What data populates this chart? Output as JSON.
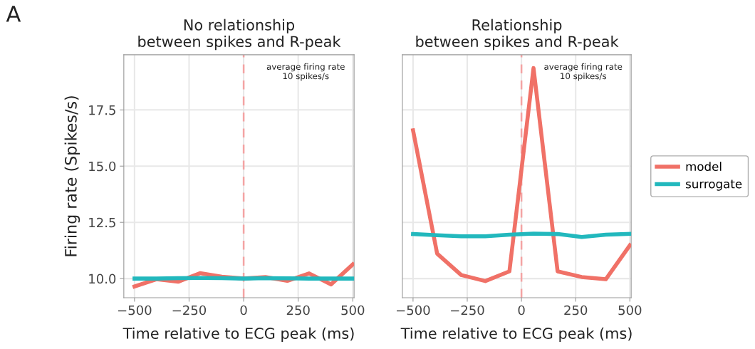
{
  "chart_data": [
    {
      "type": "line",
      "title": "No relationship\nbetween spikes and R-peak",
      "xlabel": "Time relative to ECG peak (ms)",
      "ylabel": "Firing rate (Spikes/s)",
      "annotations": [
        "A",
        "average firing rate\n10 spikes/s"
      ],
      "x": [
        -500,
        -400,
        -300,
        -200,
        -100,
        0,
        100,
        200,
        300,
        400,
        500
      ],
      "series": [
        {
          "color": "#f07167",
          "values": [
            9.65,
            9.97,
            9.86,
            10.24,
            10.08,
            10.0,
            10.07,
            9.9,
            10.23,
            9.74,
            10.63
          ]
        },
        {
          "color": "#22b8bd",
          "values": [
            10.0,
            10.0,
            10.02,
            10.03,
            10.02,
            10.0,
            10.02,
            10.01,
            10.0,
            10.0,
            10.0
          ]
        }
      ],
      "xlim": [
        -549,
        506
      ],
      "ylim": [
        9.15,
        19.95
      ],
      "xticks": [
        -500,
        -250,
        0,
        250,
        500
      ],
      "yticks": [
        {
          "value": 10,
          "label": "10.0"
        },
        {
          "value": 12.5,
          "label": "12.5"
        },
        {
          "value": 15,
          "label": "15.0"
        },
        {
          "value": 17.5,
          "label": "17.5"
        }
      ],
      "ref_lines": [
        {
          "axis": "x",
          "value": 0,
          "color": "#f4a3a3",
          "line_style": "dashed"
        }
      ],
      "grid": true,
      "legend": false,
      "marker": "none",
      "line_style": "solid"
    },
    {
      "type": "line",
      "title": "Relationship\nbetween spikes and R-peak",
      "xlabel": "Time relative to ECG peak (ms)",
      "annotations": [
        "average firing rate\n10 spikes/s"
      ],
      "x": [
        -500,
        -388.9,
        -277.8,
        -166.7,
        -55.6,
        55.6,
        166.7,
        277.8,
        388.9,
        500
      ],
      "series": [
        {
          "name": "model",
          "color": "#f07167",
          "values": [
            16.59,
            11.11,
            10.16,
            9.89,
            10.32,
            19.36,
            10.32,
            10.07,
            9.97,
            11.48
          ]
        },
        {
          "name": "surrogate",
          "color": "#22b8bd",
          "values": [
            11.98,
            11.93,
            11.88,
            11.88,
            11.95,
            12.0,
            11.98,
            11.85,
            11.95,
            11.99
          ]
        }
      ],
      "xlim": [
        -549,
        506
      ],
      "ylim": [
        9.15,
        19.95
      ],
      "xticks": [
        -500,
        -250,
        0,
        250,
        500
      ],
      "yticks": [
        10,
        12.5,
        15,
        17.5
      ],
      "tick_labels": "x",
      "ref_lines": [
        {
          "axis": "x",
          "value": 0,
          "color": "#f4a3a3",
          "line_style": "dashed"
        }
      ],
      "grid": true,
      "legend": "right",
      "marker": "none",
      "line_style": "solid"
    }
  ]
}
